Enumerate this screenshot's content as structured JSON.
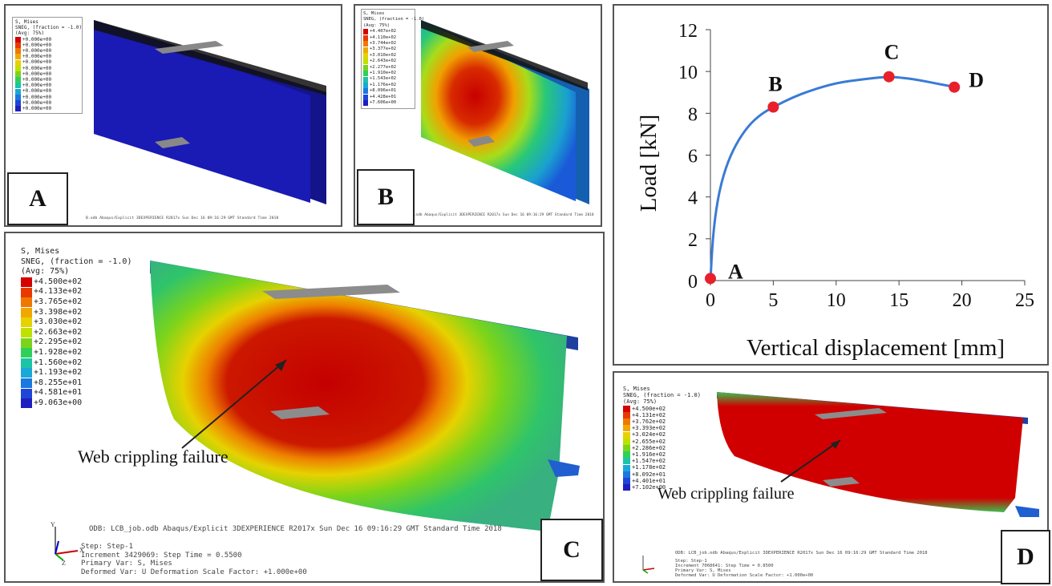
{
  "panel_a": {
    "label": "A",
    "legend": {
      "header": [
        "S, Mises",
        "SNEG, (fraction = -1.0)",
        "(Avg: 75%)"
      ],
      "values": [
        "+0.000e+00",
        "+0.000e+00",
        "+0.000e+00",
        "+0.000e+00",
        "+0.000e+00",
        "+0.000e+00",
        "+0.000e+00",
        "+0.000e+00",
        "+0.000e+00",
        "+0.000e+00",
        "+0.000e+00",
        "+0.000e+00",
        "+0.000e+00"
      ]
    },
    "footer": "B.odb   Abaqus/Explicit 3DEXPERIENCE R2017x   Sun Dec 16 09:16:29 GMT Standard Time 2018"
  },
  "panel_b": {
    "label": "B",
    "legend": {
      "header": [
        "S, Mises",
        "SNEG, (fraction = -1.0)",
        "(Avg: 75%)"
      ],
      "values": [
        "+4.407e+02",
        "+4.110e+02",
        "+3.744e+02",
        "+3.377e+02",
        "+3.010e+02",
        "+2.643e+02",
        "+2.277e+02",
        "+1.910e+02",
        "+1.543e+02",
        "+1.176e+02",
        "+8.096e+01",
        "+4.428e+01",
        "+7.606e+00"
      ]
    },
    "footer": "B.odb   Abaqus/Explicit 3DEXPERIENCE R2017x   Sun Dec 16 09:16:29 GMT Standard Time 2018"
  },
  "panel_c": {
    "label": "C",
    "legend": {
      "header": [
        "S, Mises",
        "SNEG, (fraction = -1.0)",
        "(Avg: 75%)"
      ],
      "values": [
        "+4.500e+02",
        "+4.133e+02",
        "+3.765e+02",
        "+3.398e+02",
        "+3.030e+02",
        "+2.663e+02",
        "+2.295e+02",
        "+1.928e+02",
        "+1.560e+02",
        "+1.193e+02",
        "+8.255e+01",
        "+4.581e+01",
        "+9.063e+00"
      ]
    },
    "annotation": "Web crippling failure",
    "footer_line1": "ODB: LCB_job.odb    Abaqus/Explicit 3DEXPERIENCE R2017x    Sun Dec 16 09:16:29 GMT Standard Time 2018",
    "step_lines": [
      "Step: Step-1",
      "Increment   3429069: Step Time =   0.5500",
      "Primary Var: S, Mises",
      "Deformed Var: U   Deformation Scale Factor: +1.000e+00"
    ]
  },
  "panel_d": {
    "label": "D",
    "legend": {
      "header": [
        "S, Mises",
        "SNEG, (fraction = -1.0)",
        "(Avg: 75%)"
      ],
      "values": [
        "+4.500e+02",
        "+4.131e+02",
        "+3.762e+02",
        "+3.393e+02",
        "+3.024e+02",
        "+2.655e+02",
        "+2.286e+02",
        "+1.916e+02",
        "+1.547e+02",
        "+1.178e+02",
        "+8.092e+01",
        "+4.401e+01",
        "+7.102e+00"
      ]
    },
    "annotation": "Web crippling failure",
    "footer_line1": "ODB: LCB_job.odb    Abaqus/Explicit 3DEXPERIENCE R2017x    Sun Dec 16 09:16:29 GMT Standard Time 2018",
    "step_lines": [
      "Step: Step-1",
      "Increment   7068641: Step Time =   0.8500",
      "Primary Var: S, Mises",
      "Deformed Var: U   Deformation Scale Factor: +1.000e+00"
    ]
  },
  "legend_colors": [
    "#d50000",
    "#e83a00",
    "#f07800",
    "#f0a800",
    "#e6d200",
    "#c0e000",
    "#7cd41a",
    "#2fd05a",
    "#1cc4a6",
    "#1aa8d8",
    "#1a78e0",
    "#1f45d8",
    "#1f1fbf"
  ],
  "chart_data": {
    "type": "line",
    "xlabel": "Vertical displacement [mm]",
    "ylabel": "Load [kN]",
    "xlim": [
      0,
      25
    ],
    "ylim": [
      0,
      12
    ],
    "xticks": [
      "0",
      "5",
      "10",
      "15",
      "20",
      "25"
    ],
    "yticks": [
      "0",
      "2",
      "4",
      "6",
      "8",
      "10",
      "12"
    ],
    "series": [
      {
        "x": [
          0,
          0.2,
          0.6,
          1.2,
          2,
          3,
          4,
          5,
          6.5,
          8,
          10,
          12,
          14,
          15,
          16.5,
          18,
          19.5
        ],
        "y": [
          0,
          2.2,
          4.0,
          5.4,
          6.5,
          7.4,
          7.95,
          8.3,
          8.75,
          9.1,
          9.45,
          9.62,
          9.75,
          9.72,
          9.6,
          9.42,
          9.25
        ],
        "color": "#3a7bd5"
      }
    ],
    "points": [
      {
        "label": "A",
        "x": 0,
        "y": 0.1
      },
      {
        "label": "B",
        "x": 5,
        "y": 8.3
      },
      {
        "label": "C",
        "x": 14.2,
        "y": 9.75
      },
      {
        "label": "D",
        "x": 19.4,
        "y": 9.25
      }
    ],
    "marker_color": "#e8202a",
    "grid": false
  }
}
